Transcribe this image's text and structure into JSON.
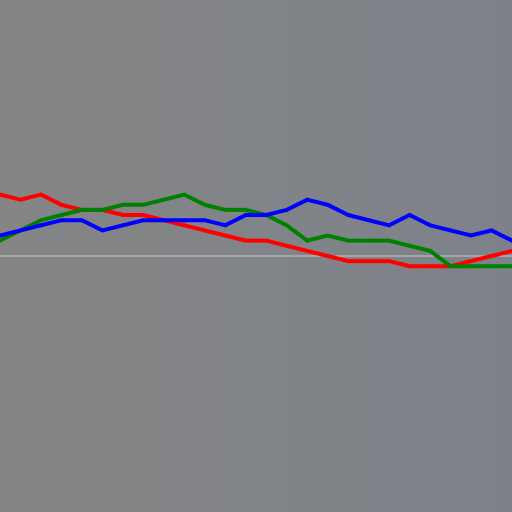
{
  "colors": {
    "background_left": "#858585",
    "background_right": "#7d828a",
    "baseline": "#c8c8c8",
    "red": "#ff0000",
    "green": "#008000",
    "blue": "#0000ff"
  },
  "chart_data": {
    "type": "line",
    "title": "",
    "xlabel": "",
    "ylabel": "",
    "xlim": [
      0,
      100
    ],
    "ylim": [
      0,
      100
    ],
    "axes_visible": false,
    "grid": false,
    "legend": "none",
    "baseline": 50,
    "x": [
      0,
      4,
      8,
      12,
      16,
      20,
      24,
      28,
      32,
      36,
      40,
      44,
      48,
      52,
      56,
      60,
      64,
      68,
      72,
      76,
      80,
      84,
      88,
      92,
      96,
      100
    ],
    "series": [
      {
        "color": "red",
        "values": [
          62,
          61,
          62,
          60,
          59,
          59,
          58,
          58,
          57,
          56,
          55,
          54,
          53,
          53,
          52,
          51,
          50,
          49,
          49,
          49,
          48,
          48,
          48,
          49,
          50,
          51
        ]
      },
      {
        "color": "green",
        "values": [
          53,
          55,
          57,
          58,
          59,
          59,
          60,
          60,
          61,
          62,
          60,
          59,
          59,
          58,
          56,
          53,
          54,
          53,
          53,
          53,
          52,
          51,
          48,
          48,
          48,
          48
        ]
      },
      {
        "color": "blue",
        "values": [
          54,
          55,
          56,
          57,
          57,
          55,
          56,
          57,
          57,
          57,
          57,
          56,
          58,
          58,
          59,
          61,
          60,
          58,
          57,
          56,
          58,
          56,
          55,
          54,
          55,
          53
        ]
      }
    ]
  }
}
